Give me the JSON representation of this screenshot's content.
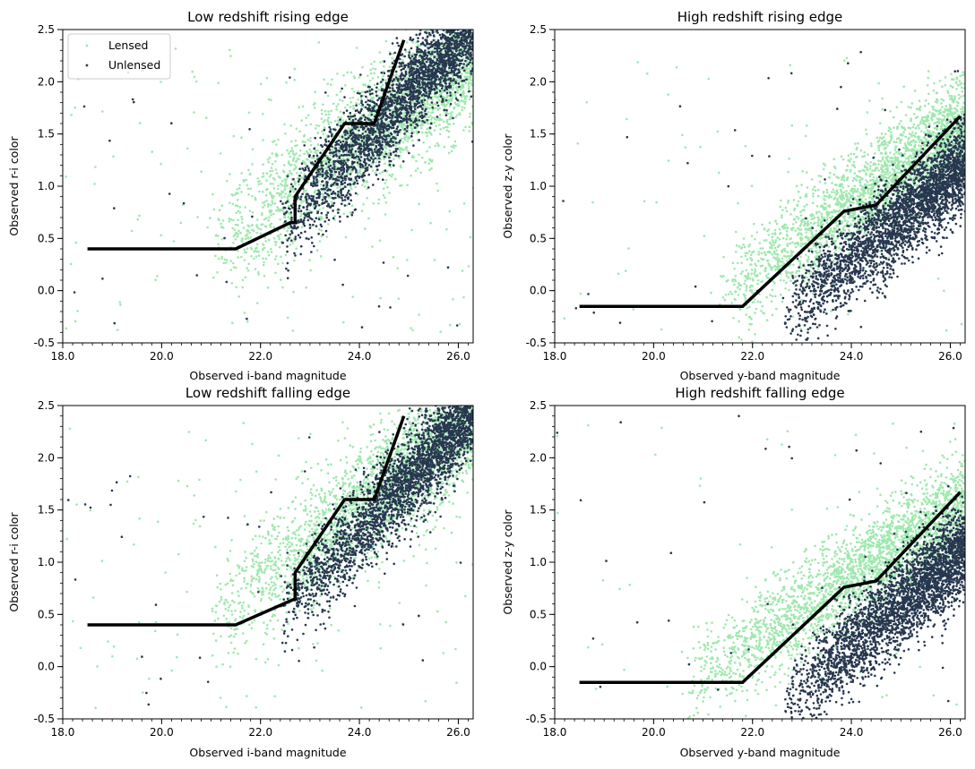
{
  "colors": {
    "lensed": "#9fe8ad",
    "unlensed": "#27374f",
    "boundary": "#000000",
    "background": "#ffffff"
  },
  "legend": {
    "entries": [
      "Lensed",
      "Unlensed"
    ]
  },
  "chart_data": [
    {
      "type": "scatter",
      "title": "Low redshift rising edge",
      "xlabel": "Observed i-band magnitude",
      "ylabel": "Observed r-i color",
      "xlim": [
        18.0,
        26.3
      ],
      "ylim": [
        -0.5,
        2.5
      ],
      "xticks": [
        18.0,
        20.0,
        22.0,
        24.0,
        26.0
      ],
      "xtick_labels": [
        "18.0",
        "20.0",
        "22.0",
        "24.0",
        "26.0"
      ],
      "yticks": [
        -0.5,
        0.0,
        0.5,
        1.0,
        1.5,
        2.0,
        2.5
      ],
      "ytick_labels": [
        "-0.5",
        "0.0",
        "0.5",
        "1.0",
        "1.5",
        "2.0",
        "2.5"
      ],
      "legend_position": "top-left",
      "series": [
        {
          "name": "Lensed",
          "color": "#9fe8ad",
          "cloud": {
            "n": 2600,
            "x0": 21.0,
            "x1": 26.3,
            "slope": 0.36,
            "intercept": -7.2,
            "spread": 0.3,
            "sparse": 130
          }
        },
        {
          "name": "Unlensed",
          "color": "#27374f",
          "cloud": {
            "n": 2800,
            "x0": 22.4,
            "x1": 26.3,
            "slope": 0.5,
            "intercept": -10.6,
            "spread": 0.22,
            "sparse": 40
          }
        },
        {
          "name": "Boundary",
          "color": "#000000",
          "line": {
            "x": [
              18.5,
              21.5,
              22.6,
              22.7,
              22.7,
              23.7,
              24.3,
              24.9
            ],
            "y": [
              0.4,
              0.4,
              0.65,
              0.65,
              0.9,
              1.6,
              1.6,
              2.4
            ]
          }
        }
      ]
    },
    {
      "type": "scatter",
      "title": "High redshift rising edge",
      "xlabel": "Observed y-band magnitude",
      "ylabel": "Observed z-y color",
      "xlim": [
        18.0,
        26.3
      ],
      "ylim": [
        -0.5,
        2.5
      ],
      "xticks": [
        18.0,
        20.0,
        22.0,
        24.0,
        26.0
      ],
      "xtick_labels": [
        "18.0",
        "20.0",
        "22.0",
        "24.0",
        "26.0"
      ],
      "yticks": [
        -0.5,
        0.0,
        0.5,
        1.0,
        1.5,
        2.0,
        2.5
      ],
      "ytick_labels": [
        "-0.5",
        "0.0",
        "0.5",
        "1.0",
        "1.5",
        "2.0",
        "2.5"
      ],
      "series": [
        {
          "name": "Lensed",
          "color": "#9fe8ad",
          "cloud": {
            "n": 2600,
            "x0": 21.3,
            "x1": 26.3,
            "slope": 0.33,
            "intercept": -7.1,
            "spread": 0.24,
            "sparse": 70
          }
        },
        {
          "name": "Unlensed",
          "color": "#27374f",
          "cloud": {
            "n": 2900,
            "x0": 22.6,
            "x1": 26.3,
            "slope": 0.4,
            "intercept": -9.3,
            "spread": 0.22,
            "sparse": 30
          }
        },
        {
          "name": "Boundary",
          "color": "#000000",
          "line": {
            "x": [
              18.5,
              21.8,
              23.85,
              24.5,
              26.2
            ],
            "y": [
              -0.15,
              -0.15,
              0.76,
              0.82,
              1.67
            ]
          }
        }
      ]
    },
    {
      "type": "scatter",
      "title": "Low redshift falling edge",
      "xlabel": "Observed i-band magnitude",
      "ylabel": "Observed r-i color",
      "xlim": [
        18.0,
        26.3
      ],
      "ylim": [
        -0.5,
        2.5
      ],
      "xticks": [
        18.0,
        20.0,
        22.0,
        24.0,
        26.0
      ],
      "xtick_labels": [
        "18.0",
        "20.0",
        "22.0",
        "24.0",
        "26.0"
      ],
      "yticks": [
        -0.5,
        0.0,
        0.5,
        1.0,
        1.5,
        2.0,
        2.5
      ],
      "ytick_labels": [
        "-0.5",
        "0.0",
        "0.5",
        "1.0",
        "1.5",
        "2.0",
        "2.5"
      ],
      "series": [
        {
          "name": "Lensed",
          "color": "#9fe8ad",
          "cloud": {
            "n": 2600,
            "x0": 21.0,
            "x1": 26.3,
            "slope": 0.36,
            "intercept": -7.1,
            "spread": 0.3,
            "sparse": 110
          }
        },
        {
          "name": "Unlensed",
          "color": "#27374f",
          "cloud": {
            "n": 2800,
            "x0": 22.4,
            "x1": 26.3,
            "slope": 0.5,
            "intercept": -10.7,
            "spread": 0.22,
            "sparse": 40
          }
        },
        {
          "name": "Boundary",
          "color": "#000000",
          "line": {
            "x": [
              18.5,
              21.5,
              22.7,
              22.7,
              23.7,
              24.3,
              24.9
            ],
            "y": [
              0.4,
              0.4,
              0.65,
              0.9,
              1.6,
              1.6,
              2.4
            ]
          }
        }
      ]
    },
    {
      "type": "scatter",
      "title": "High redshift falling edge",
      "xlabel": "Observed y-band magnitude",
      "ylabel": "Observed z-y color",
      "xlim": [
        18.0,
        26.3
      ],
      "ylim": [
        -0.5,
        2.5
      ],
      "xticks": [
        18.0,
        20.0,
        22.0,
        24.0,
        26.0
      ],
      "xtick_labels": [
        "18.0",
        "20.0",
        "22.0",
        "24.0",
        "26.0"
      ],
      "yticks": [
        -0.5,
        0.0,
        0.5,
        1.0,
        1.5,
        2.0,
        2.5
      ],
      "ytick_labels": [
        "-0.5",
        "0.0",
        "0.5",
        "1.0",
        "1.5",
        "2.0",
        "2.5"
      ],
      "series": [
        {
          "name": "Lensed",
          "color": "#9fe8ad",
          "cloud": {
            "n": 2700,
            "x0": 20.5,
            "x1": 26.3,
            "slope": 0.3,
            "intercept": -6.35,
            "spread": 0.24,
            "sparse": 60
          }
        },
        {
          "name": "Unlensed",
          "color": "#27374f",
          "cloud": {
            "n": 3000,
            "x0": 22.6,
            "x1": 26.3,
            "slope": 0.4,
            "intercept": -9.4,
            "spread": 0.22,
            "sparse": 30
          }
        },
        {
          "name": "Boundary",
          "color": "#000000",
          "line": {
            "x": [
              18.5,
              21.8,
              23.85,
              24.5,
              26.2
            ],
            "y": [
              -0.15,
              -0.15,
              0.76,
              0.82,
              1.67
            ]
          }
        }
      ]
    }
  ]
}
